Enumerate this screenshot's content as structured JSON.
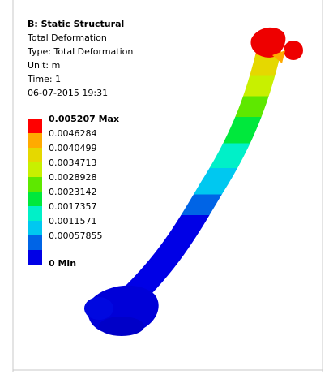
{
  "header": {
    "title": "B: Static Structural",
    "result": "Total Deformation",
    "type": "Type: Total Deformation",
    "unit": "Unit: m",
    "time": "Time: 1",
    "date": "06-07-2015 19:31"
  },
  "legend": [
    {
      "label": "0.005207 Max",
      "color": "#ff0000"
    },
    {
      "label": "0.0046284",
      "color": "#ffaa00"
    },
    {
      "label": "0.0040499",
      "color": "#e5d800"
    },
    {
      "label": "0.0034713",
      "color": "#c8f000"
    },
    {
      "label": "0.0028928",
      "color": "#5ee800"
    },
    {
      "label": "0.0023142",
      "color": "#00e83c"
    },
    {
      "label": "0.0017357",
      "color": "#00f0c8"
    },
    {
      "label": "0.0011571",
      "color": "#00c8f0"
    },
    {
      "label": "0.00057855",
      "color": "#0064e6"
    },
    {
      "label": "0 Min",
      "color": "#0000e6"
    }
  ]
}
